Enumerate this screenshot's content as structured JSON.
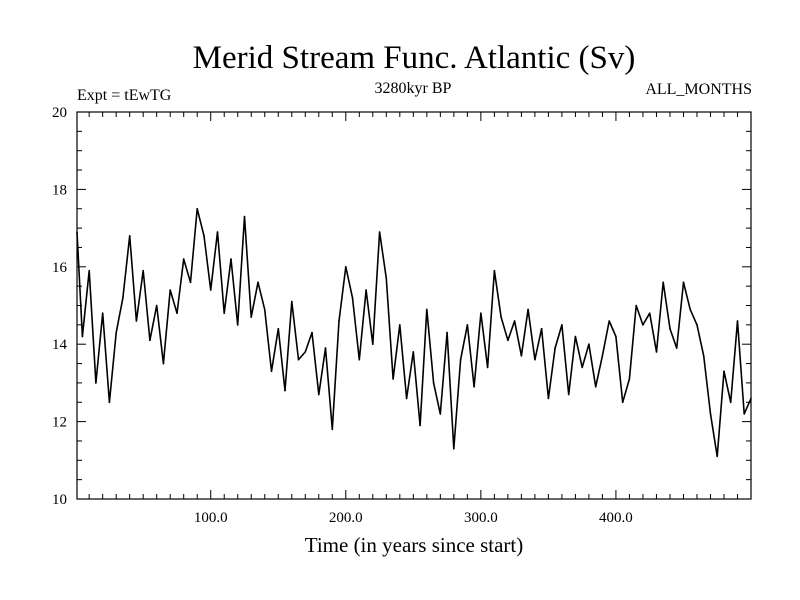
{
  "chart_data": {
    "type": "line",
    "title": "Merid Stream Func. Atlantic (Sv)",
    "subtitle_left": "Expt = tEwTG",
    "subtitle_center": "3280kyr BP",
    "subtitle_right": "ALL_MONTHS",
    "xlabel": "Time (in years since start)",
    "ylabel": "",
    "xlim": [
      1,
      500
    ],
    "ylim": [
      10,
      20
    ],
    "xticks": [
      100,
      200,
      300,
      400
    ],
    "xtick_labels": [
      "100.0",
      "200.0",
      "300.0",
      "400.0"
    ],
    "yticks": [
      10,
      12,
      14,
      16,
      18,
      20
    ],
    "ytick_labels": [
      "10",
      "12",
      "14",
      "16",
      "18",
      "20"
    ],
    "series": [
      {
        "name": "Merid Stream Func. Atlantic",
        "x": [
          1,
          5,
          10,
          15,
          20,
          25,
          30,
          35,
          40,
          45,
          50,
          55,
          60,
          65,
          70,
          75,
          80,
          85,
          90,
          95,
          100,
          105,
          110,
          115,
          120,
          125,
          130,
          135,
          140,
          145,
          150,
          155,
          160,
          165,
          170,
          175,
          180,
          185,
          190,
          195,
          200,
          205,
          210,
          215,
          220,
          225,
          230,
          235,
          240,
          245,
          250,
          255,
          260,
          265,
          270,
          275,
          280,
          285,
          290,
          295,
          300,
          305,
          310,
          315,
          320,
          325,
          330,
          335,
          340,
          345,
          350,
          355,
          360,
          365,
          370,
          375,
          380,
          385,
          390,
          395,
          400,
          405,
          410,
          415,
          420,
          425,
          430,
          435,
          440,
          445,
          450,
          455,
          460,
          465,
          470,
          475,
          480,
          485,
          490,
          495,
          500
        ],
        "values": [
          16.9,
          14.2,
          15.9,
          13.0,
          14.8,
          12.5,
          14.3,
          15.2,
          16.8,
          14.6,
          15.9,
          14.1,
          15.0,
          13.5,
          15.4,
          14.8,
          16.2,
          15.6,
          17.5,
          16.8,
          15.4,
          16.9,
          14.8,
          16.2,
          14.5,
          17.3,
          14.7,
          15.6,
          14.9,
          13.3,
          14.4,
          12.8,
          15.1,
          13.6,
          13.8,
          14.3,
          12.7,
          13.9,
          11.8,
          14.6,
          16.0,
          15.2,
          13.6,
          15.4,
          14.0,
          16.9,
          15.7,
          13.1,
          14.5,
          12.6,
          13.8,
          11.9,
          14.9,
          13.0,
          12.2,
          14.3,
          11.3,
          13.6,
          14.5,
          12.9,
          14.8,
          13.4,
          15.9,
          14.7,
          14.1,
          14.6,
          13.7,
          14.9,
          13.6,
          14.4,
          12.6,
          13.9,
          14.5,
          12.7,
          14.2,
          13.4,
          14.0,
          12.9,
          13.7,
          14.6,
          14.2,
          12.5,
          13.1,
          15.0,
          14.5,
          14.8,
          13.8,
          15.6,
          14.4,
          13.9,
          15.6,
          14.9,
          14.5,
          13.7,
          12.2,
          11.1,
          13.3,
          12.5,
          14.6,
          12.2,
          12.6
        ]
      }
    ]
  }
}
